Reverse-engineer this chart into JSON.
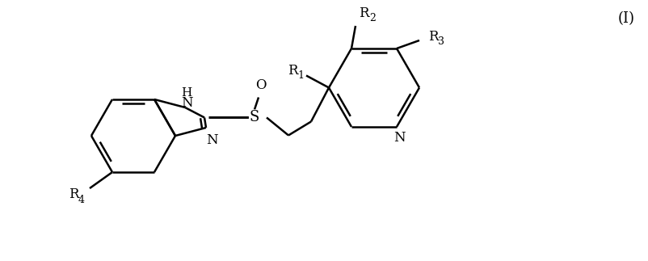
{
  "label_I": "(I)",
  "label_R1": "R",
  "label_R1_sub": "1",
  "label_R2": "R",
  "label_R2_sub": "2",
  "label_R3": "R",
  "label_R3_sub": "3",
  "label_R4": "R",
  "label_R4_sub": "4",
  "label_H": "H",
  "label_N": "N",
  "label_S": "S",
  "label_O": "O",
  "bg_color": "#ffffff",
  "line_color": "#000000",
  "line_width": 1.8,
  "font_size": 12,
  "fig_width": 8.03,
  "fig_height": 3.23,
  "dpi": 100
}
